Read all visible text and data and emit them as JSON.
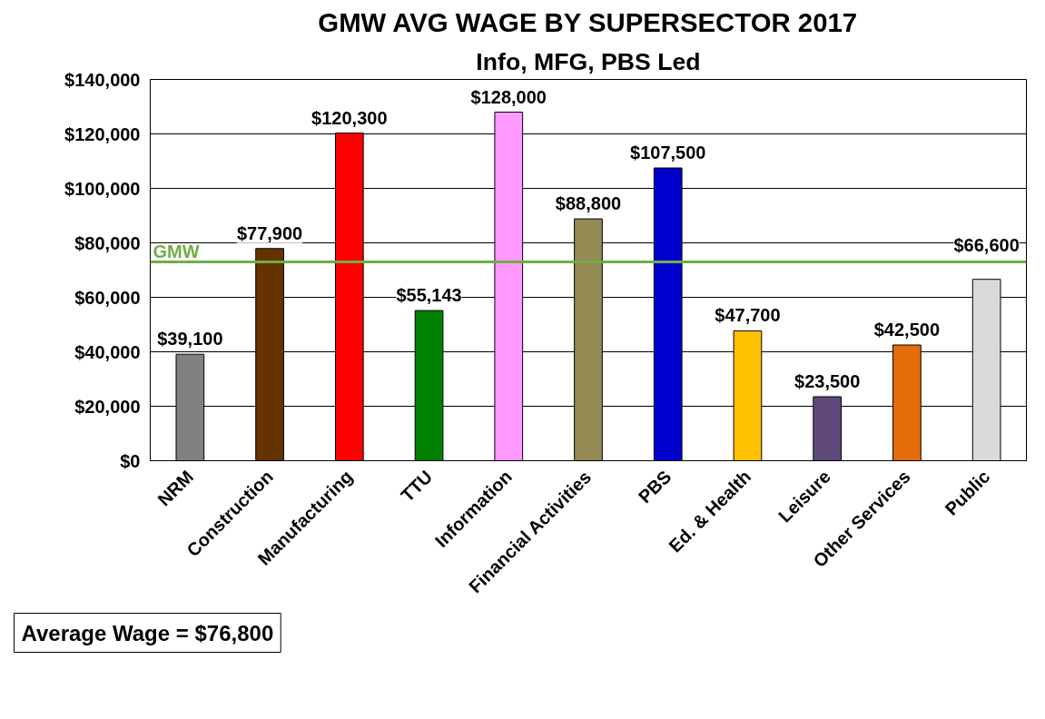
{
  "chart_data": {
    "type": "bar",
    "title": "GMW AVG WAGE BY SUPERSECTOR 2017",
    "subtitle": "Info, MFG, PBS Led",
    "categories": [
      "NRM",
      "Construction",
      "Manufacturing",
      "TTU",
      "Information",
      "Financial Activities",
      "PBS",
      "Ed. & Health",
      "Leisure",
      "Other Services",
      "Public"
    ],
    "values": [
      39100,
      77900,
      120300,
      55143,
      128000,
      88800,
      107500,
      47700,
      23500,
      42500,
      66600
    ],
    "colors": [
      "#808080",
      "#663300",
      "#ff0000",
      "#008000",
      "#ff99ff",
      "#948a54",
      "#0000cc",
      "#ffc000",
      "#604a7b",
      "#e46c0a",
      "#d9d9d9"
    ],
    "ylim": [
      0,
      140000
    ],
    "yticks": [
      {
        "value": 0,
        "label": "$0"
      },
      {
        "value": 20000,
        "label": "$20,000"
      },
      {
        "value": 40000,
        "label": "$40,000"
      },
      {
        "value": 60000,
        "label": "$60,000"
      },
      {
        "value": 80000,
        "label": "$80,000"
      },
      {
        "value": 100000,
        "label": "$100,000"
      },
      {
        "value": 120000,
        "label": "$120,000"
      },
      {
        "value": 140000,
        "label": "$140,000"
      }
    ],
    "value_labels": [
      "$39,100",
      "$77,900",
      "$120,300",
      "$55,143",
      "$128,000",
      "$88,800",
      "$107,500",
      "$47,700",
      "$23,500",
      "$42,500",
      "$66,600"
    ],
    "grid": "y",
    "ref_lines": [
      {
        "axis": "y",
        "value": 73000,
        "label": "GMW",
        "color": "#70ad47"
      }
    ],
    "annotations": [
      "Average Wage = $76,800"
    ]
  }
}
